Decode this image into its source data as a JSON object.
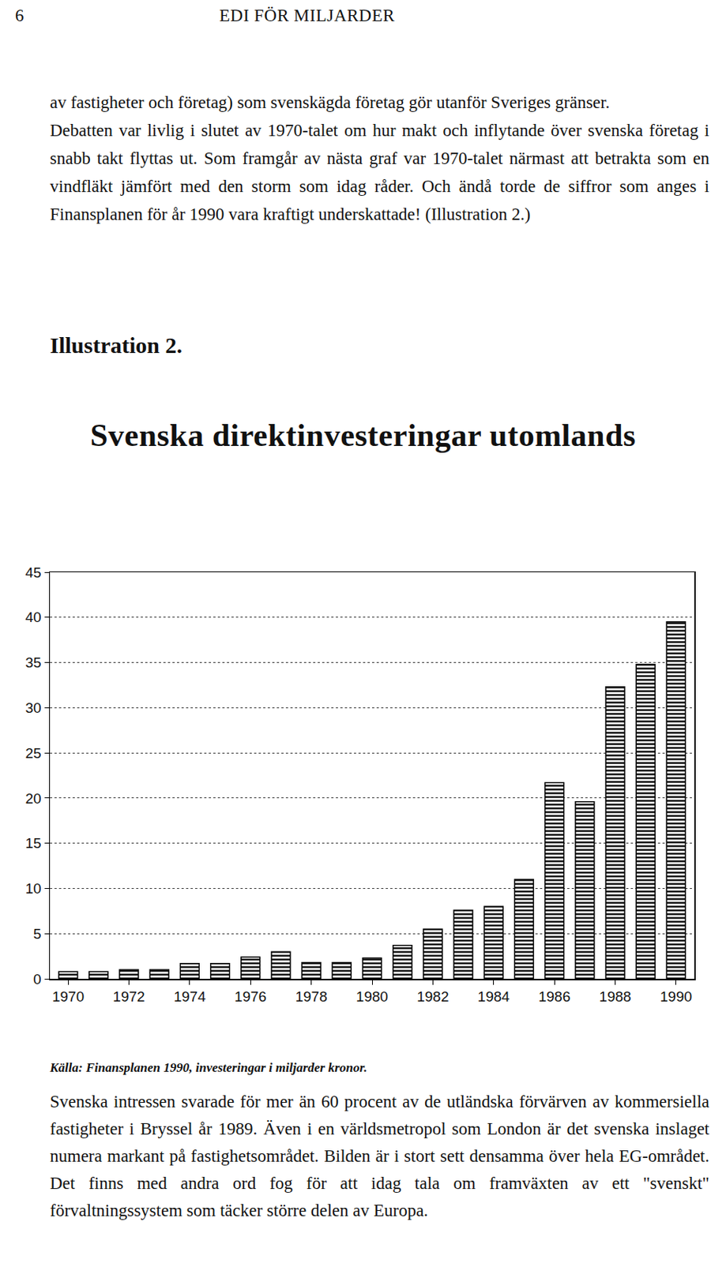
{
  "header": {
    "page_number": "6",
    "title": "EDI FÖR MILJARDER"
  },
  "paragraphs_top": [
    "av fastigheter och företag) som svenskägda företag gör utanför Sveriges gränser.",
    "Debatten var livlig i slutet av 1970-talet om hur makt och inflytande över svenska företag i snabb takt flyttas ut. Som framgår av nästa graf var 1970-talet närmast att betrakta som en vindfläkt jämfört med den storm som idag råder. Och ändå torde de siffror som anges i Finansplanen för år 1990 vara kraftigt underskattade! (Illustration 2.)"
  ],
  "illustration_label": "Illustration 2.",
  "chart_data": {
    "type": "bar",
    "title": "Svenska direktinvesteringar utomlands",
    "x": [
      1970,
      1971,
      1972,
      1973,
      1974,
      1975,
      1976,
      1977,
      1978,
      1979,
      1980,
      1981,
      1982,
      1983,
      1984,
      1985,
      1986,
      1987,
      1988,
      1989,
      1990
    ],
    "values": [
      0.8,
      0.8,
      1.0,
      1.0,
      1.7,
      1.7,
      2.4,
      3.0,
      1.8,
      1.8,
      2.3,
      3.7,
      5.5,
      7.6,
      8.0,
      11.0,
      21.7,
      19.6,
      32.3,
      34.8,
      39.5
    ],
    "color": "#000000",
    "xlim": [
      1969.4,
      1990.6
    ],
    "xticks": [
      1970,
      1972,
      1974,
      1976,
      1978,
      1980,
      1982,
      1984,
      1986,
      1988,
      1990
    ],
    "ylim": [
      0,
      45
    ],
    "yticks": [
      0,
      5,
      10,
      15,
      20,
      25,
      30,
      35,
      40,
      45
    ],
    "grid": true
  },
  "source": "Källa: Finansplanen 1990, investeringar i miljarder kronor.",
  "paragraphs_bottom": [
    "Svenska intressen svarade för mer än 60 procent av de utländska förvärven av kommersiella fastigheter i Bryssel år 1989. Även i en världsmetropol som London är det svenska inslaget numera markant på fastighetsområdet. Bilden är i stort sett densamma över hela EG-området. Det finns med andra ord fog för att idag tala om framväxten av ett \"svenskt\" förvaltningssystem som täcker större delen av Europa."
  ]
}
